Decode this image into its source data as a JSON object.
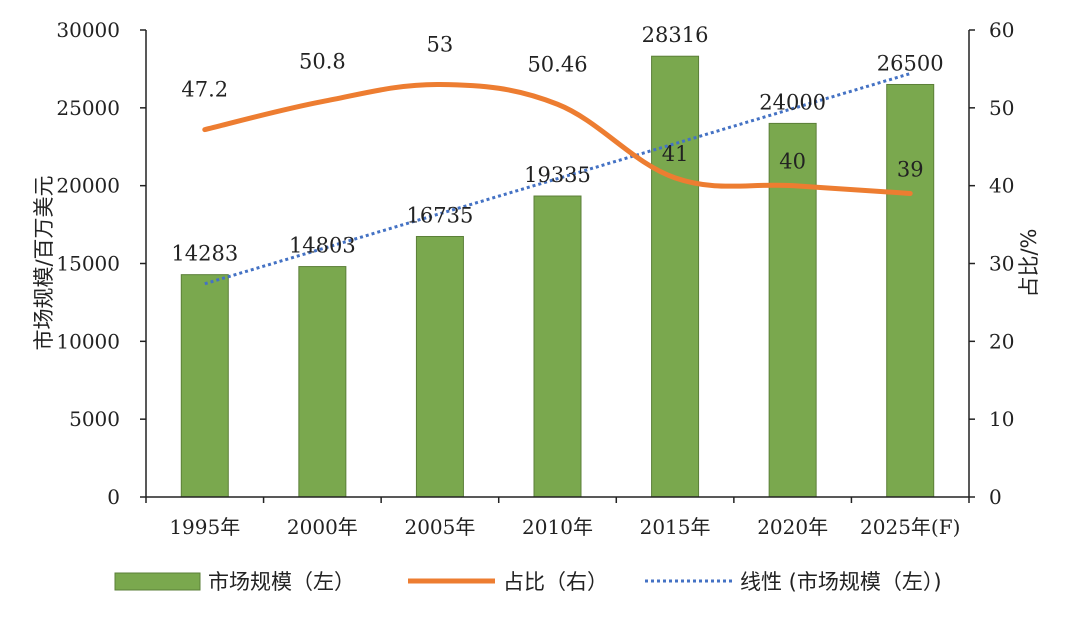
{
  "chart_data": {
    "type": "bar",
    "categories": [
      "1995年",
      "2000年",
      "2005年",
      "2010年",
      "2015年",
      "2020年",
      "2025年(F)"
    ],
    "series": [
      {
        "name": "市场规模（左）",
        "type": "bar",
        "axis": "left",
        "values": [
          14283,
          14803,
          16735,
          19335,
          28316,
          24000,
          26500
        ],
        "color": "#7aa84e"
      },
      {
        "name": "占比（右）",
        "type": "line",
        "axis": "right",
        "values": [
          47.2,
          50.8,
          53,
          50.46,
          41,
          40,
          39
        ],
        "color": "#ed7d31"
      },
      {
        "name": "线性 (市场规模（左）)",
        "type": "trendline",
        "axis": "left",
        "values": [
          13700,
          15950,
          18200,
          20450,
          22700,
          24950,
          27200
        ],
        "color": "#4472c4"
      }
    ],
    "left_axis": {
      "label": "市场规模/百万美元",
      "ylim": [
        0,
        30000
      ],
      "ticks": [
        "0",
        "5000",
        "10000",
        "15000",
        "20000",
        "25000",
        "30000"
      ]
    },
    "right_axis": {
      "label": "占比/%",
      "ylim": [
        0,
        60
      ],
      "ticks": [
        "0",
        "10",
        "20",
        "30",
        "40",
        "50",
        "60"
      ]
    },
    "grid": false,
    "legend": "bottom"
  }
}
